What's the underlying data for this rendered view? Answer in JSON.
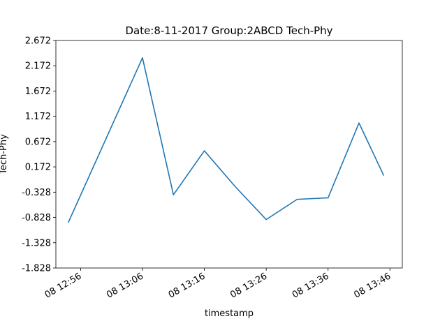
{
  "chart_data": {
    "type": "line",
    "title": "Date:8-11-2017 Group:2ABCD Tech-Phy",
    "xlabel": "timestamp",
    "ylabel": "Tech-Phy",
    "x_tick_labels": [
      "08 12:56",
      "08 13:06",
      "08 13:16",
      "08 13:26",
      "08 13:36",
      "08 13:46"
    ],
    "x_tick_times": [
      "12:56",
      "13:06",
      "13:16",
      "13:26",
      "13:36",
      "13:46"
    ],
    "y_ticks": [
      -1.828,
      -1.328,
      -0.828,
      -0.328,
      0.172,
      0.672,
      1.172,
      1.672,
      2.172,
      2.672
    ],
    "y_tick_labels": [
      "-1.828",
      "-1.328",
      "-0.828",
      "-0.328",
      "0.172",
      "0.672",
      "1.172",
      "1.672",
      "2.172",
      "2.672"
    ],
    "xlim": [
      "12:52",
      "13:48"
    ],
    "ylim": [
      -1.828,
      2.672
    ],
    "grid": false,
    "series": [
      {
        "color": "#1f77b4",
        "x": [
          "12:54",
          "13:06",
          "13:11",
          "13:16",
          "13:21",
          "13:26",
          "13:31",
          "13:36",
          "13:41",
          "13:45"
        ],
        "values": [
          -0.93,
          2.33,
          -0.38,
          0.49,
          -0.22,
          -0.87,
          -0.47,
          -0.44,
          1.04,
          0.0
        ]
      }
    ]
  }
}
